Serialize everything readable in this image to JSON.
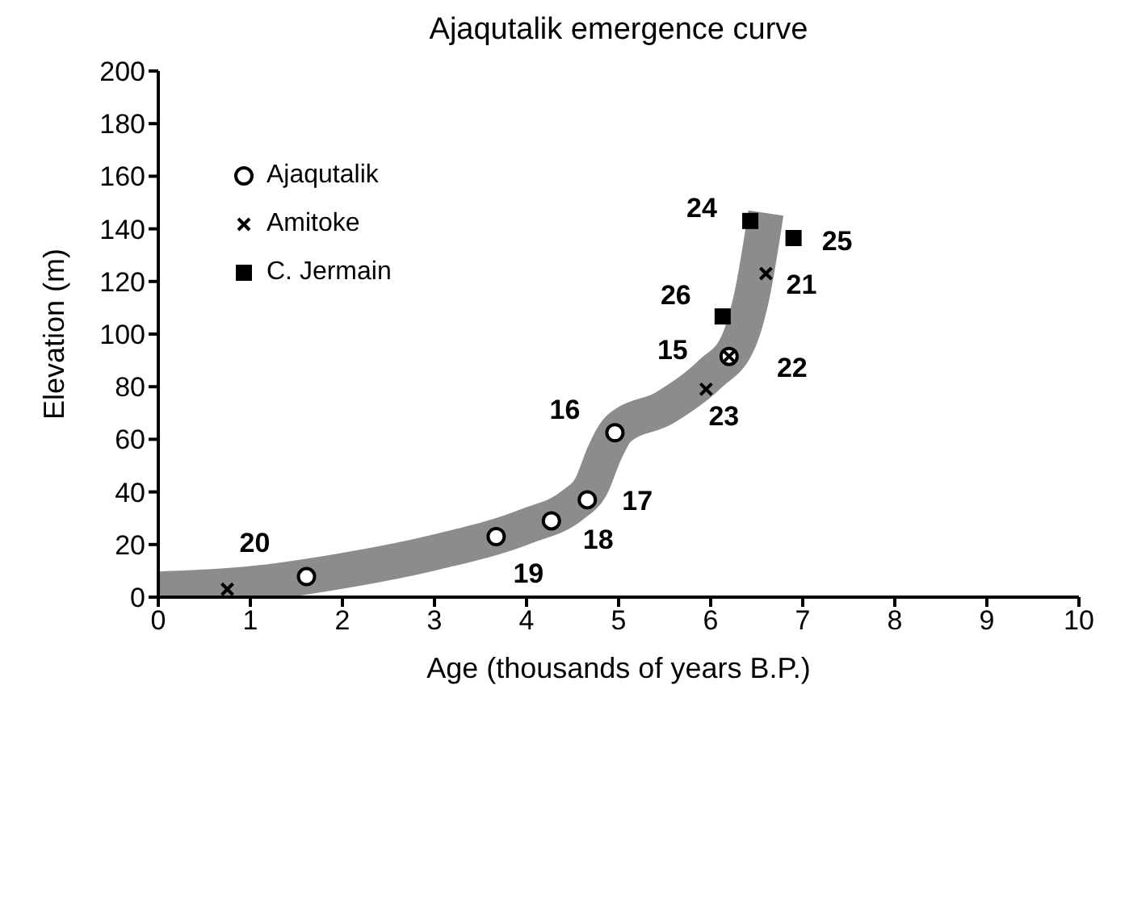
{
  "chart_data": {
    "type": "scatter",
    "title": "Ajaqutalik emergence curve",
    "xlabel": "Age (thousands of years B.P.)",
    "ylabel": "Elevation (m)",
    "xlim": [
      0,
      10
    ],
    "xticks": [
      0,
      1,
      2,
      3,
      4,
      5,
      6,
      7,
      8,
      9,
      10
    ],
    "ylim": [
      0,
      200
    ],
    "yticks": [
      0,
      20,
      40,
      60,
      80,
      100,
      120,
      140,
      160,
      180,
      200
    ],
    "grid": false,
    "legend": "top left",
    "series": [
      {
        "type": "line",
        "color": "#8c8c8c",
        "marker": "none",
        "x": [
          0,
          1,
          2,
          3,
          4,
          4.5,
          4.7,
          4.85,
          5,
          5.5,
          6,
          6.3,
          6.45,
          6.6
        ],
        "values": [
          3,
          5,
          10,
          17,
          27,
          35,
          42,
          55,
          64,
          72,
          85,
          97,
          115,
          146
        ]
      },
      {
        "name": "Ajaqutalik",
        "color": "#000000",
        "marker": "circle",
        "x": [
          1.61,
          3.67,
          4.27,
          4.66,
          4.96,
          6.2
        ],
        "values": [
          7.8,
          23,
          29,
          37,
          62.5,
          91.5
        ]
      },
      {
        "name": "Amitoke",
        "color": "#000000",
        "marker": "cross",
        "x": [
          0.75,
          5.95,
          6.2,
          6.6
        ],
        "values": [
          3,
          79,
          91.5,
          123
        ]
      },
      {
        "name": "C. Jermain",
        "color": "#000000",
        "marker": "square",
        "x": [
          6.43,
          6.9,
          6.13
        ],
        "values": [
          143,
          136.5,
          106.7
        ]
      }
    ],
    "annotations": [
      {
        "text": "20",
        "x": 1.61,
        "y": 7.8
      },
      {
        "text": "19",
        "x": 3.67,
        "y": 23
      },
      {
        "text": "18",
        "x": 4.27,
        "y": 29
      },
      {
        "text": "17",
        "x": 4.66,
        "y": 37
      },
      {
        "text": "16",
        "x": 4.96,
        "y": 62.5
      },
      {
        "text": "15",
        "x": 6.2,
        "y": 91.5
      },
      {
        "text": "23",
        "x": 5.95,
        "y": 79
      },
      {
        "text": "22",
        "x": 6.2,
        "y": 91.5
      },
      {
        "text": "21",
        "x": 6.6,
        "y": 123
      },
      {
        "text": "24",
        "x": 6.43,
        "y": 143
      },
      {
        "text": "25",
        "x": 6.9,
        "y": 136.5
      },
      {
        "text": "26",
        "x": 6.13,
        "y": 106.7
      }
    ]
  }
}
